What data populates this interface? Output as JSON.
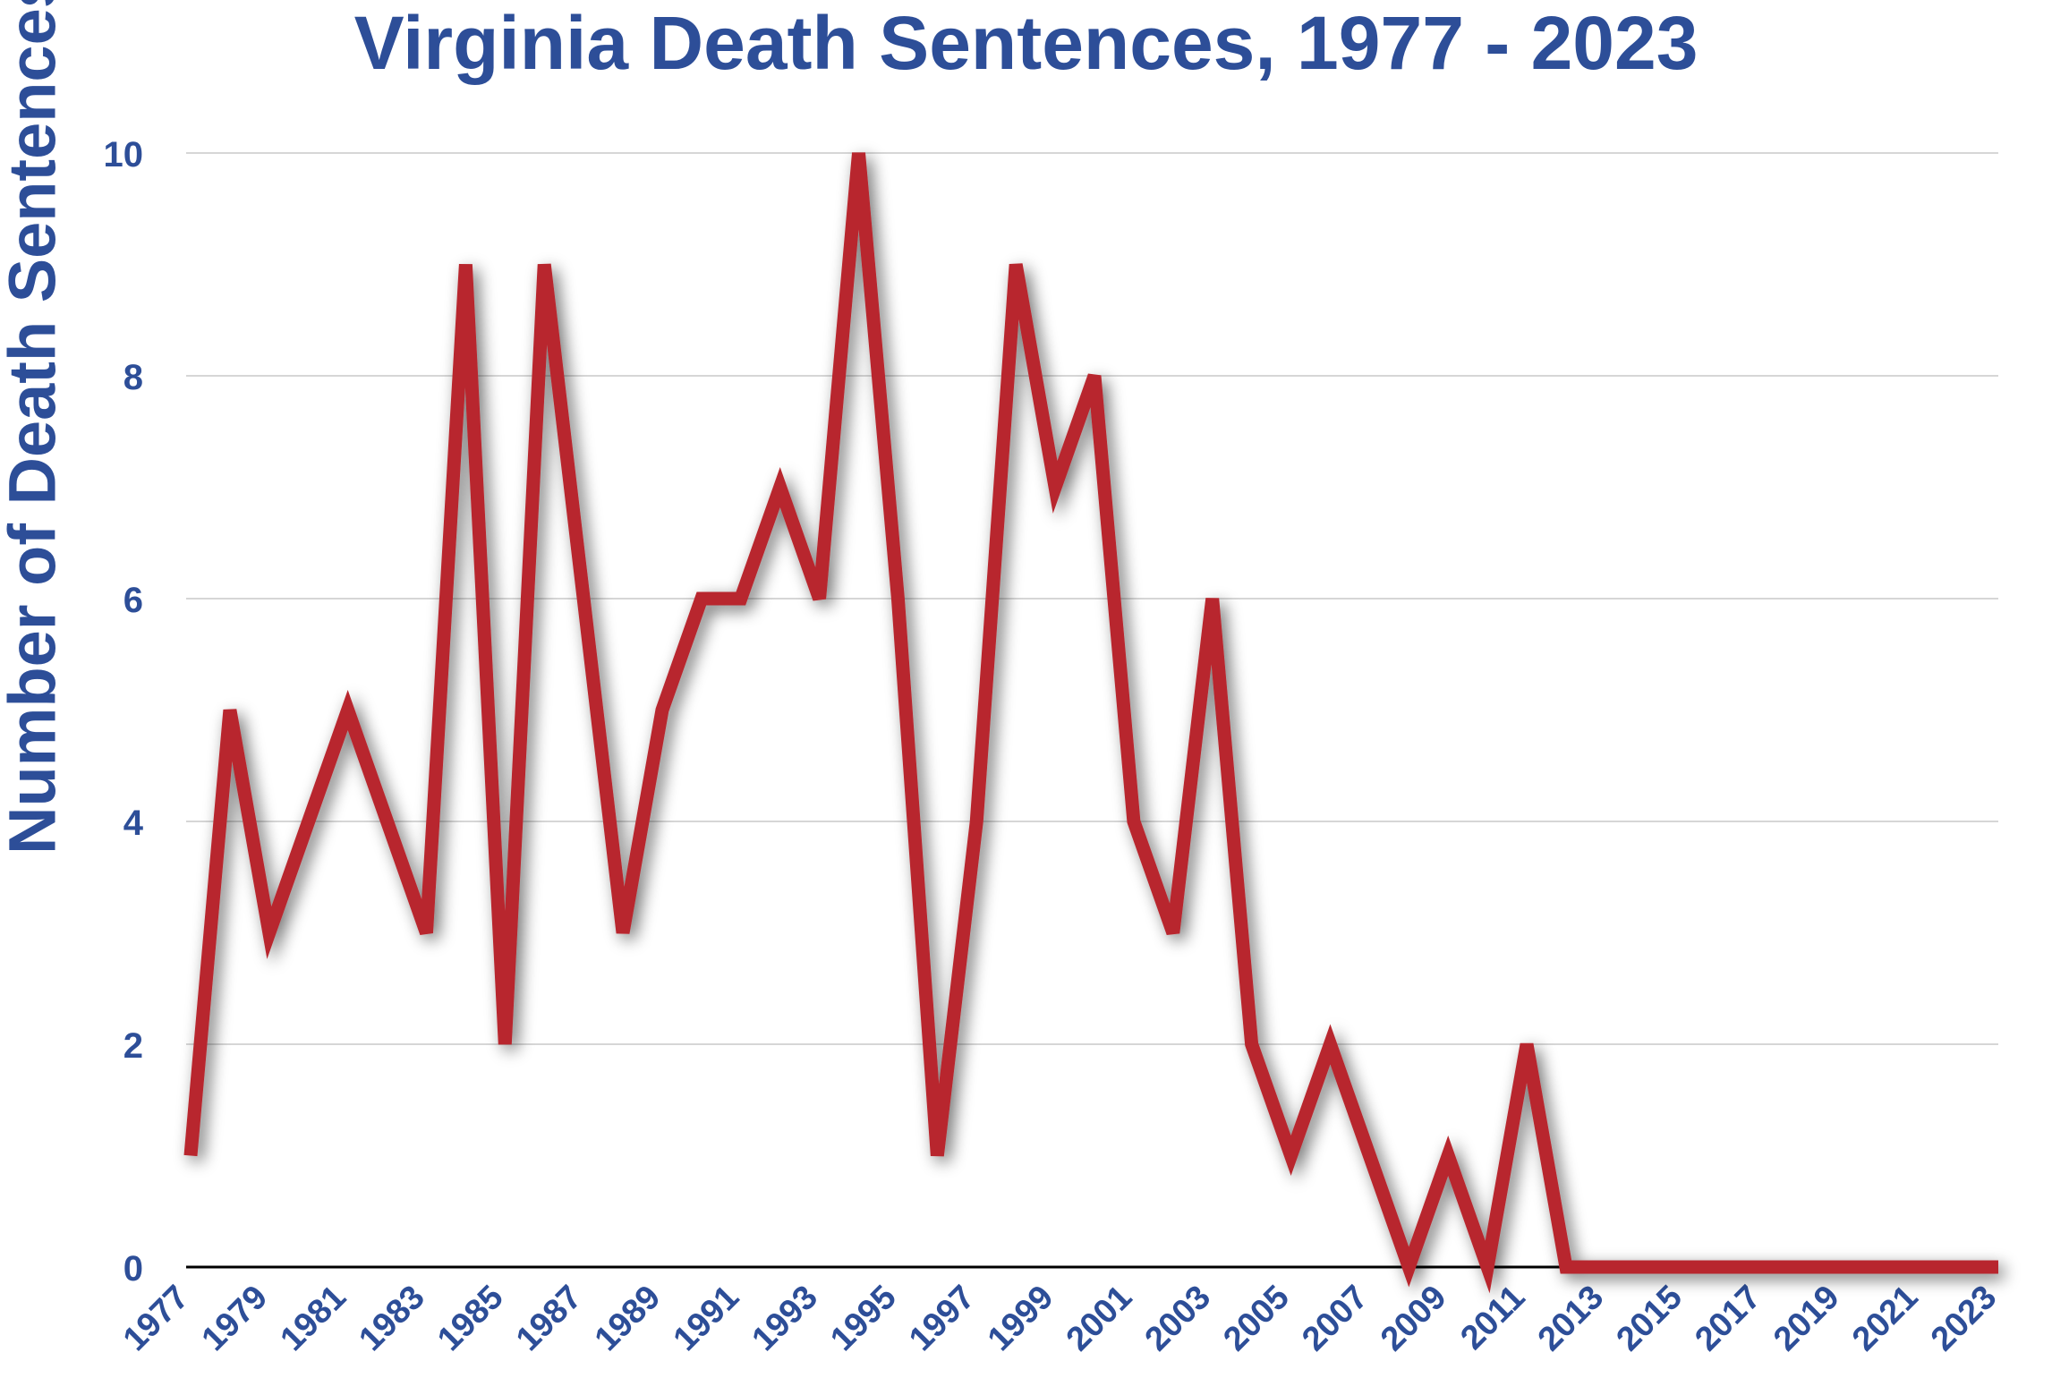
{
  "colors": {
    "title": "#2d4e98",
    "line": "#b8282f",
    "grid": "#d6d6d6",
    "baseline": "#000000"
  },
  "chart_data": {
    "type": "line",
    "title": "Virginia Death Sentences, 1977 - 2023",
    "xlabel": "",
    "ylabel": "Number of Death Sentences",
    "ylim": [
      0,
      10
    ],
    "yticks": [
      0,
      2,
      4,
      6,
      8,
      10
    ],
    "grid": true,
    "legend": "none",
    "xtick_labels": [
      "1977",
      "1979",
      "1981",
      "1983",
      "1985",
      "1987",
      "1989",
      "1991",
      "1993",
      "1995",
      "1997",
      "1999",
      "2001",
      "2003",
      "2005",
      "2007",
      "2009",
      "2011",
      "2013",
      "2015",
      "2017",
      "2019",
      "2021",
      "2023"
    ],
    "x": [
      1977,
      1978,
      1979,
      1980,
      1981,
      1982,
      1983,
      1984,
      1985,
      1986,
      1987,
      1988,
      1989,
      1990,
      1991,
      1992,
      1993,
      1994,
      1995,
      1996,
      1997,
      1998,
      1999,
      2000,
      2001,
      2002,
      2003,
      2004,
      2005,
      2006,
      2007,
      2008,
      2009,
      2010,
      2011,
      2012,
      2013,
      2014,
      2015,
      2016,
      2017,
      2018,
      2019,
      2020,
      2021,
      2022,
      2023
    ],
    "series": [
      {
        "values": [
          1,
          5,
          3,
          4,
          5,
          4,
          3,
          9,
          2,
          9,
          6,
          3,
          5,
          6,
          6,
          7,
          6,
          10,
          6,
          1,
          4,
          9,
          7,
          8,
          4,
          3,
          6,
          2,
          1,
          2,
          1,
          0,
          1,
          0,
          2,
          0,
          0,
          0,
          0,
          0,
          0,
          0,
          0,
          0,
          0,
          0,
          0
        ]
      }
    ]
  }
}
